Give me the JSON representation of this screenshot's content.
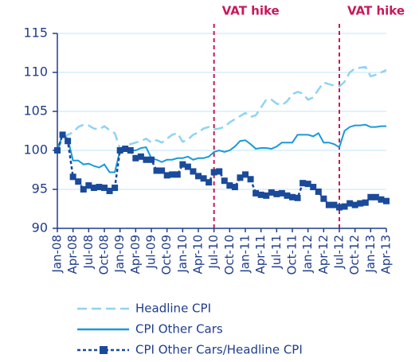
{
  "chart_data": {
    "type": "line",
    "categories": [
      "Jan-08",
      null,
      null,
      "Apr-08",
      null,
      null,
      "Jul-08",
      null,
      null,
      "Oct-08",
      null,
      null,
      "Jan-09",
      null,
      null,
      "Apr-09",
      null,
      null,
      "Jul-09",
      null,
      null,
      "Oct-09",
      null,
      null,
      "Jan-10",
      null,
      null,
      "Apr-10",
      null,
      null,
      "Jul-10",
      null,
      null,
      "Oct-10",
      null,
      null,
      "Jan-11",
      null,
      null,
      "Apr-11",
      null,
      null,
      "Jul-11",
      null,
      null,
      "Oct-11",
      null,
      null,
      "Jan-12",
      null,
      null,
      "Apr-12",
      null,
      null,
      "Jul-12",
      null,
      null,
      "Oct-12",
      null,
      null,
      "Jan-13",
      null,
      null,
      "Apr-13"
    ],
    "series": [
      {
        "name": "Headline CPI",
        "color": "#8fd3f2",
        "style": "dashed",
        "values": [
          100,
          101.5,
          102,
          102.3,
          103,
          103.3,
          103.2,
          102.8,
          102.7,
          103.1,
          102.6,
          102.2,
          100.2,
          100.6,
          100.8,
          101,
          101.2,
          101.5,
          101,
          101.3,
          101,
          101.5,
          102,
          102.2,
          101.1,
          101.4,
          102,
          102.3,
          102.8,
          103,
          102.7,
          102.8,
          103,
          103.6,
          104,
          104.4,
          104.8,
          104.3,
          104.5,
          105.5,
          106.5,
          106.5,
          106,
          105.8,
          106.3,
          107.2,
          107.5,
          107.3,
          106.5,
          106.8,
          107.8,
          108.7,
          108.5,
          108.3,
          108.2,
          108.8,
          110,
          110.5,
          110.6,
          110.7,
          109.5,
          109.7,
          110,
          110.3
        ]
      },
      {
        "name": "CPI Other Cars",
        "color": "#1a9ad8",
        "style": "solid",
        "values": [
          100,
          102,
          101.5,
          98.7,
          98.7,
          98.2,
          98.3,
          98,
          97.8,
          98.2,
          97.2,
          97.2,
          100,
          100.2,
          100,
          100,
          100.3,
          100.4,
          99,
          98.8,
          98.5,
          98.8,
          98.8,
          99,
          99,
          99.2,
          98.8,
          99,
          99,
          99.2,
          99.8,
          100,
          99.8,
          100,
          100.5,
          101.2,
          101.3,
          100.8,
          100.2,
          100.3,
          100.3,
          100.2,
          100.5,
          101,
          101,
          101,
          102,
          102,
          102,
          101.8,
          102.2,
          101,
          101,
          100.8,
          100.4,
          102.5,
          103,
          103.2,
          103.2,
          103.3,
          103,
          103,
          103.1,
          103.1
        ]
      },
      {
        "name": "CPI Other Cars/Headline CPI",
        "color": "#1a4a9a",
        "style": "dashed-markers",
        "values": [
          100,
          102,
          101.2,
          96.6,
          96,
          95,
          95.5,
          95.2,
          95.3,
          95.2,
          94.8,
          95.2,
          100,
          100.2,
          100,
          99,
          99.2,
          98.8,
          98.8,
          97.4,
          97.4,
          96.8,
          96.9,
          96.9,
          98.2,
          97.9,
          97.3,
          96.7,
          96.4,
          95.9,
          97.2,
          97.3,
          96.1,
          95.5,
          95.3,
          96.5,
          96.9,
          96.3,
          94.5,
          94.3,
          94.2,
          94.6,
          94.4,
          94.5,
          94.2,
          94,
          93.9,
          95.8,
          95.7,
          95.3,
          94.7,
          93.8,
          93,
          93,
          92.7,
          92.8,
          93.2,
          93,
          93.2,
          93.3,
          94,
          94,
          93.7,
          93.5
        ]
      }
    ],
    "ylim": [
      90,
      115
    ],
    "yticks": [
      90,
      95,
      100,
      105,
      110,
      115
    ],
    "grid": true,
    "annotations": [
      {
        "text": "VAT hike",
        "x": "Jul-10"
      },
      {
        "text": "VAT hike",
        "x": "Jul-12"
      }
    ],
    "legend": "bottom"
  }
}
